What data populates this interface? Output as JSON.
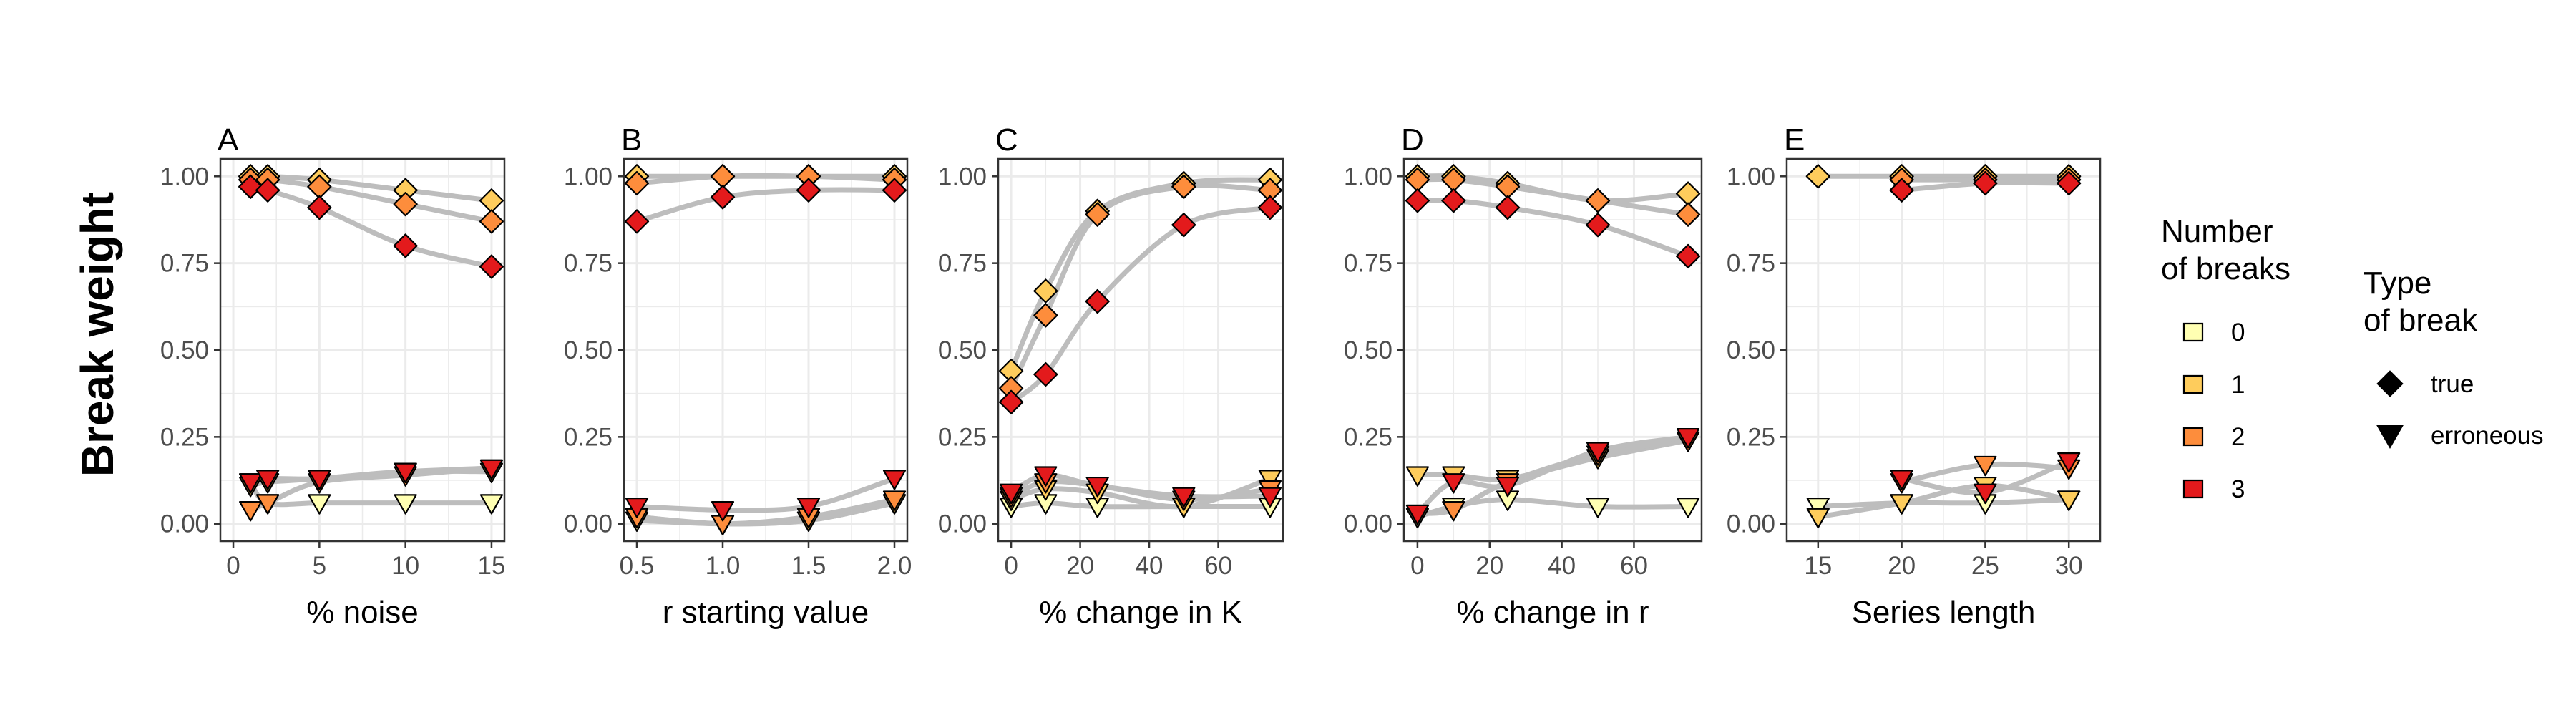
{
  "figure": {
    "ylabel": "Break weight",
    "yticks": [
      "0.00",
      "0.25",
      "0.50",
      "0.75",
      "1.00"
    ]
  },
  "colors": {
    "0": "#ffffb2",
    "1": "#fecc5c",
    "2": "#fd8d3c",
    "3": "#e31a1c",
    "trend_line": "#bdbdbd",
    "grid": "#ebebeb"
  },
  "legend": {
    "number_title": [
      "Number",
      "of breaks"
    ],
    "number_items": [
      {
        "key": "0",
        "label": "0"
      },
      {
        "key": "1",
        "label": "1"
      },
      {
        "key": "2",
        "label": "2"
      },
      {
        "key": "3",
        "label": "3"
      }
    ],
    "type_title": [
      "Type",
      "of break"
    ],
    "type_items": [
      {
        "shape": "diamond",
        "label": "true"
      },
      {
        "shape": "triangle-down",
        "label": "erroneous"
      }
    ]
  },
  "chart_data": [
    {
      "type": "scatter",
      "panel": "A",
      "xlabel": "% noise",
      "xlim": [
        -0.75,
        15.75
      ],
      "ylim": [
        -0.05,
        1.05
      ],
      "xticks": [
        0,
        5,
        10,
        15
      ],
      "xtick_labels": [
        "0",
        "5",
        "10",
        "15"
      ],
      "x": [
        1,
        2,
        5,
        10,
        15
      ],
      "series": [
        {
          "breaks": 1,
          "shape": "diamond",
          "values": [
            1.0,
            1.0,
            0.99,
            0.96,
            0.93
          ]
        },
        {
          "breaks": 2,
          "shape": "diamond",
          "values": [
            0.99,
            0.99,
            0.97,
            0.92,
            0.87
          ]
        },
        {
          "breaks": 3,
          "shape": "diamond",
          "values": [
            0.97,
            0.96,
            0.91,
            0.8,
            0.74
          ]
        },
        {
          "breaks": 0,
          "shape": "triangle-down",
          "values": [
            0.12,
            0.06,
            0.06,
            0.06,
            0.06
          ]
        },
        {
          "breaks": 1,
          "shape": "triangle-down",
          "values": [
            0.11,
            0.12,
            0.13,
            0.15,
            0.15
          ]
        },
        {
          "breaks": 2,
          "shape": "triangle-down",
          "values": [
            0.04,
            0.06,
            0.12,
            0.14,
            0.16
          ]
        },
        {
          "breaks": 3,
          "shape": "triangle-down",
          "values": [
            0.12,
            0.13,
            0.13,
            0.15,
            0.16
          ]
        }
      ]
    },
    {
      "type": "scatter",
      "panel": "B",
      "xlabel": "r starting value",
      "xlim": [
        0.425,
        2.075
      ],
      "ylim": [
        -0.05,
        1.05
      ],
      "xticks": [
        0.5,
        1.0,
        1.5,
        2.0
      ],
      "xtick_labels": [
        "0.5",
        "1.0",
        "1.5",
        "2.0"
      ],
      "x": [
        0.5,
        1.0,
        1.5,
        2.0
      ],
      "series": [
        {
          "breaks": 1,
          "shape": "diamond",
          "values": [
            1.0,
            1.0,
            1.0,
            1.0
          ]
        },
        {
          "breaks": 2,
          "shape": "diamond",
          "values": [
            0.98,
            1.0,
            1.0,
            0.99
          ]
        },
        {
          "breaks": 3,
          "shape": "diamond",
          "values": [
            0.87,
            0.94,
            0.96,
            0.96
          ]
        },
        {
          "breaks": 0,
          "shape": "triangle-down",
          "values": [
            0.01,
            0.0,
            0.01,
            0.06
          ]
        },
        {
          "breaks": 1,
          "shape": "triangle-down",
          "values": [
            0.02,
            0.0,
            0.01,
            0.06
          ]
        },
        {
          "breaks": 2,
          "shape": "triangle-down",
          "values": [
            0.02,
            0.0,
            0.02,
            0.07
          ]
        },
        {
          "breaks": 3,
          "shape": "triangle-down",
          "values": [
            0.05,
            0.04,
            0.05,
            0.13
          ]
        }
      ]
    },
    {
      "type": "scatter",
      "panel": "C",
      "xlabel": "% change in K",
      "xlim": [
        -3.75,
        78.75
      ],
      "ylim": [
        -0.05,
        1.05
      ],
      "xticks": [
        0,
        20,
        40,
        60
      ],
      "xtick_labels": [
        "0",
        "20",
        "40",
        "60"
      ],
      "x": [
        0,
        10,
        25,
        50,
        75
      ],
      "series": [
        {
          "breaks": 1,
          "shape": "diamond",
          "values": [
            0.44,
            0.67,
            0.9,
            0.98,
            0.99
          ]
        },
        {
          "breaks": 2,
          "shape": "diamond",
          "values": [
            0.39,
            0.6,
            0.89,
            0.97,
            0.96
          ]
        },
        {
          "breaks": 3,
          "shape": "diamond",
          "values": [
            0.35,
            0.43,
            0.64,
            0.86,
            0.91
          ]
        },
        {
          "breaks": 0,
          "shape": "triangle-down",
          "values": [
            0.05,
            0.06,
            0.05,
            0.05,
            0.05
          ]
        },
        {
          "breaks": 1,
          "shape": "triangle-down",
          "values": [
            0.07,
            0.1,
            0.09,
            0.05,
            0.13
          ]
        },
        {
          "breaks": 2,
          "shape": "triangle-down",
          "values": [
            0.08,
            0.12,
            0.11,
            0.07,
            0.1
          ]
        },
        {
          "breaks": 3,
          "shape": "triangle-down",
          "values": [
            0.09,
            0.14,
            0.11,
            0.08,
            0.08
          ]
        }
      ]
    },
    {
      "type": "scatter",
      "panel": "D",
      "xlabel": "% change in r",
      "xlim": [
        -3.75,
        78.75
      ],
      "ylim": [
        -0.05,
        1.05
      ],
      "xticks": [
        0,
        20,
        40,
        60
      ],
      "xtick_labels": [
        "0",
        "20",
        "40",
        "60"
      ],
      "x": [
        0,
        10,
        25,
        50,
        75
      ],
      "series": [
        {
          "breaks": 1,
          "shape": "diamond",
          "values": [
            1.0,
            1.0,
            0.98,
            0.93,
            0.95
          ]
        },
        {
          "breaks": 2,
          "shape": "diamond",
          "values": [
            0.99,
            0.99,
            0.97,
            0.93,
            0.89
          ]
        },
        {
          "breaks": 3,
          "shape": "diamond",
          "values": [
            0.93,
            0.93,
            0.91,
            0.86,
            0.77
          ]
        },
        {
          "breaks": 0,
          "shape": "triangle-down",
          "values": [
            0.02,
            0.05,
            0.07,
            0.05,
            0.05
          ]
        },
        {
          "breaks": 1,
          "shape": "triangle-down",
          "values": [
            0.14,
            0.14,
            0.13,
            0.19,
            0.24
          ]
        },
        {
          "breaks": 2,
          "shape": "triangle-down",
          "values": [
            0.03,
            0.04,
            0.12,
            0.2,
            0.24
          ]
        },
        {
          "breaks": 3,
          "shape": "triangle-down",
          "values": [
            0.03,
            0.12,
            0.11,
            0.21,
            0.25
          ]
        }
      ]
    },
    {
      "type": "scatter",
      "panel": "E",
      "xlabel": "Series length",
      "xlim": [
        13.125,
        31.875
      ],
      "ylim": [
        -0.05,
        1.05
      ],
      "xticks": [
        15,
        20,
        25,
        30
      ],
      "xtick_labels": [
        "15",
        "20",
        "25",
        "30"
      ],
      "x": [
        15,
        20,
        25,
        30
      ],
      "series": [
        {
          "breaks": 1,
          "shape": "diamond",
          "values": [
            1.0,
            1.0,
            1.0,
            1.0
          ]
        },
        {
          "breaks": 2,
          "shape": "diamond",
          "values": [
            null,
            0.99,
            0.99,
            0.99
          ]
        },
        {
          "breaks": 3,
          "shape": "diamond",
          "values": [
            null,
            0.96,
            0.98,
            0.98
          ]
        },
        {
          "breaks": 0,
          "shape": "triangle-down",
          "values": [
            0.05,
            0.06,
            0.06,
            0.07
          ]
        },
        {
          "breaks": 1,
          "shape": "triangle-down",
          "values": [
            0.02,
            0.06,
            0.11,
            0.07
          ]
        },
        {
          "breaks": 2,
          "shape": "triangle-down",
          "values": [
            null,
            0.12,
            0.17,
            0.16
          ]
        },
        {
          "breaks": 3,
          "shape": "triangle-down",
          "values": [
            null,
            0.13,
            0.09,
            0.18
          ]
        }
      ]
    }
  ]
}
